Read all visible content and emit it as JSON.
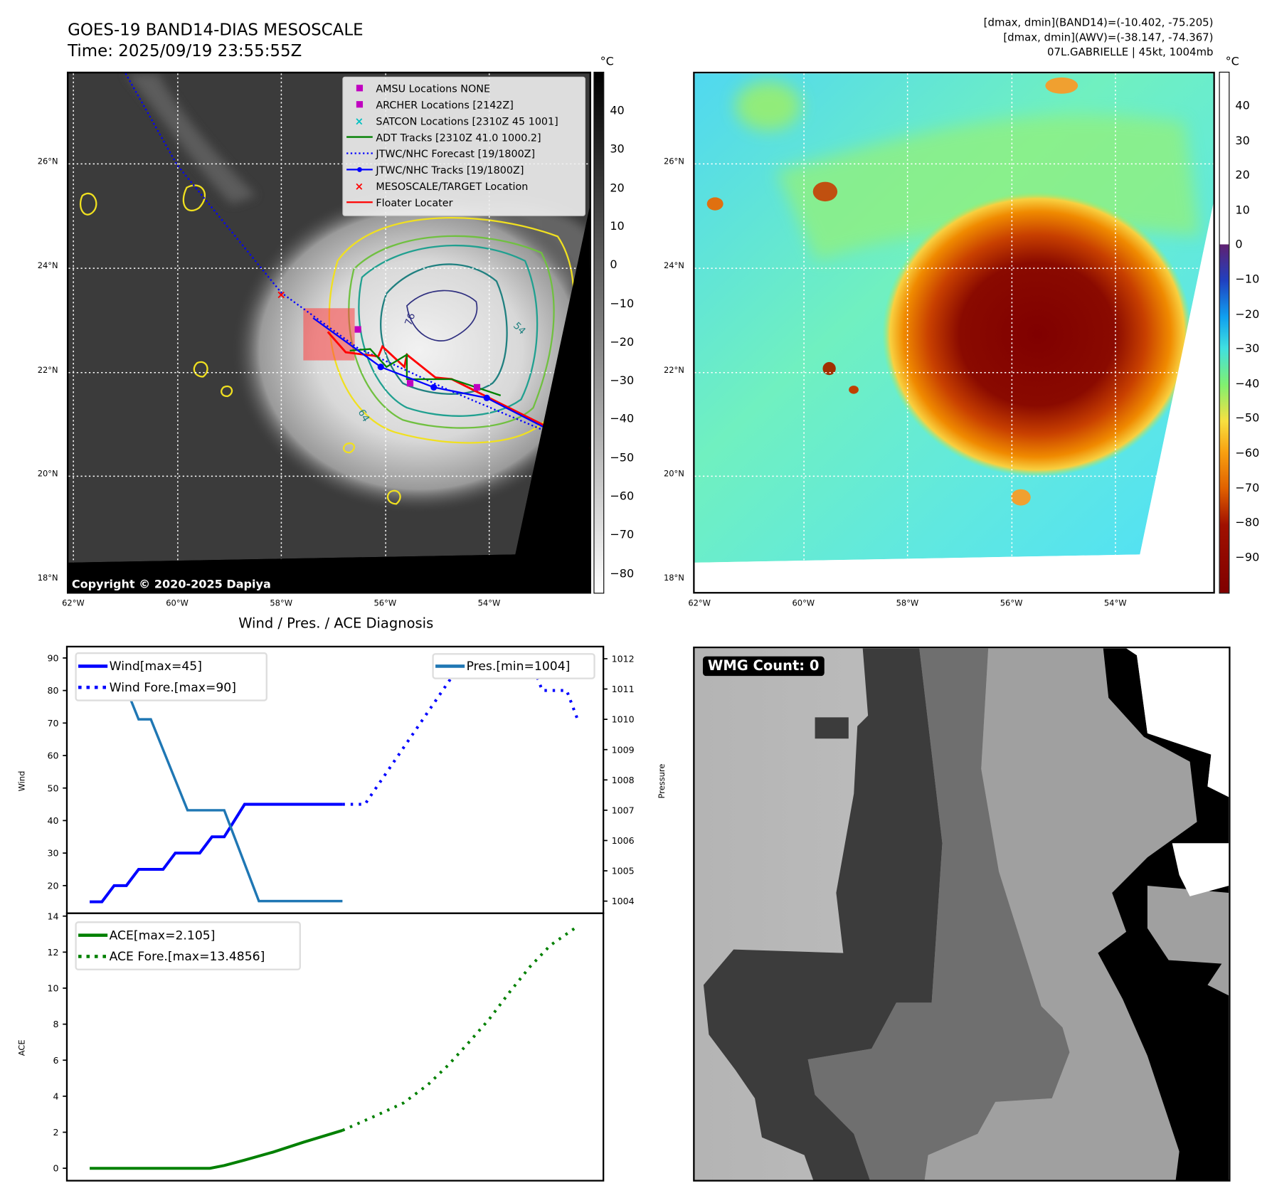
{
  "header": {
    "title_line1": "GOES-19 BAND14-DIAS MESOSCALE",
    "title_line2": "Time: 2025/09/19 23:55:55Z",
    "info_line1": "[dmax, dmin](BAND14)=(-10.402, -75.205)",
    "info_line2": "[dmax, dmin](AWV)=(-38.147, -74.367)",
    "info_line3": "07L.GABRIELLE | 45kt, 1004mb"
  },
  "maps": {
    "lon_labels": [
      "62°W",
      "60°W",
      "58°W",
      "56°W",
      "54°W"
    ],
    "lat_labels": [
      "26°N",
      "24°N",
      "22°N",
      "20°N",
      "18°N"
    ],
    "copyright": "Copyright © 2020-2025 Dapiya",
    "left_colorbar": {
      "unit": "°C",
      "ticks": [
        "40",
        "30",
        "20",
        "10",
        "0",
        "−10",
        "−20",
        "−30",
        "−40",
        "−50",
        "−60",
        "−70",
        "−80"
      ]
    },
    "right_colorbar": {
      "unit": "°C",
      "ticks": [
        "40",
        "30",
        "20",
        "10",
        "0",
        "−10",
        "−20",
        "−30",
        "−40",
        "−50",
        "−60",
        "−70",
        "−80",
        "−90"
      ]
    },
    "contour_labels": [
      "54",
      "64",
      "76"
    ],
    "legend": [
      {
        "label": "AMSU Locations NONE",
        "icon": "square-marker",
        "color": "#c000c0"
      },
      {
        "label": "ARCHER Locations [2142Z]",
        "icon": "square-marker",
        "color": "#c000c0"
      },
      {
        "label": "SATCON Locations [2310Z 45 1001]",
        "icon": "x-marker",
        "color": "#00c0c0"
      },
      {
        "label": "ADT Tracks [2310Z 41.0 1000.2]",
        "icon": "solid-line",
        "color": "#008000"
      },
      {
        "label": "JTWC/NHC Forecast [19/1800Z]",
        "icon": "dotted-line",
        "color": "#0000ff"
      },
      {
        "label": "JTWC/NHC Tracks [19/1800Z]",
        "icon": "line-dot",
        "color": "#0000ff"
      },
      {
        "label": "MESOSCALE/TARGET Location",
        "icon": "x-marker",
        "color": "#ff0000"
      },
      {
        "label": "Floater Locater",
        "icon": "solid-line",
        "color": "#ff0000"
      }
    ]
  },
  "wmg": {
    "label": "WMG Count: 0"
  },
  "chart_data": [
    {
      "type": "line",
      "title": "Wind / Pres. / ACE Diagnosis",
      "xlabel": "",
      "ylabel": "Wind",
      "ylabel_right": "Pressure",
      "x_units": "hours (approx, unlabeled)",
      "xlim": [
        -11.2,
        252
      ],
      "ylim": [
        11.5,
        93.5
      ],
      "ylim_right": [
        1003.6,
        1012.4
      ],
      "yticks": [
        20,
        30,
        40,
        50,
        60,
        70,
        80,
        90
      ],
      "yticks_right": [
        1004,
        1005,
        1006,
        1007,
        1008,
        1009,
        1010,
        1011,
        1012
      ],
      "series": [
        {
          "name": "Wind[max=45]",
          "axis": "left",
          "style": "solid",
          "color": "#0000ff",
          "x": [
            0,
            6,
            12,
            18,
            24,
            36,
            42,
            54,
            60,
            66,
            76,
            124
          ],
          "y": [
            15,
            15,
            20,
            20,
            25,
            25,
            30,
            30,
            35,
            35,
            45,
            45
          ]
        },
        {
          "name": "Wind Fore.[max=90]",
          "axis": "left",
          "style": "dotted",
          "color": "#0000ff",
          "x": [
            124,
            135,
            184,
            216,
            222,
            234,
            240
          ],
          "y": [
            45,
            45,
            90,
            90,
            80,
            80,
            70
          ]
        },
        {
          "name": "Pres.[min=1004]",
          "axis": "right",
          "style": "solid",
          "color": "#1f77b4",
          "x": [
            0,
            6,
            12,
            18,
            24,
            30,
            48,
            66,
            83,
            124
          ],
          "y": [
            1012,
            1012,
            1011,
            1011,
            1010,
            1010,
            1007,
            1007,
            1004,
            1004
          ]
        }
      ],
      "legend_left": [
        "Wind[max=45]",
        "Wind Fore.[max=90]"
      ],
      "legend_right": [
        "Pres.[min=1004]"
      ]
    },
    {
      "type": "line",
      "xlabel": "",
      "ylabel": "ACE",
      "xlim": [
        -11.2,
        252
      ],
      "ylim": [
        -0.69,
        14.16
      ],
      "yticks": [
        0,
        2,
        4,
        6,
        8,
        10,
        12,
        14
      ],
      "series": [
        {
          "name": "ACE[max=2.105]",
          "style": "solid",
          "color": "#008000",
          "x": [
            0,
            59,
            66,
            76,
            90,
            105,
            124
          ],
          "y": [
            0,
            0,
            0.15,
            0.45,
            0.9,
            1.45,
            2.105
          ]
        },
        {
          "name": "ACE Fore.[max=13.4856]",
          "style": "dotted",
          "color": "#008000",
          "x": [
            124,
            140,
            154,
            166,
            176,
            186,
            196,
            206,
            216,
            226,
            240
          ],
          "y": [
            2.105,
            2.9,
            3.63,
            4.65,
            5.74,
            6.99,
            8.28,
            9.78,
            11.19,
            12.38,
            13.4856
          ]
        }
      ]
    }
  ]
}
